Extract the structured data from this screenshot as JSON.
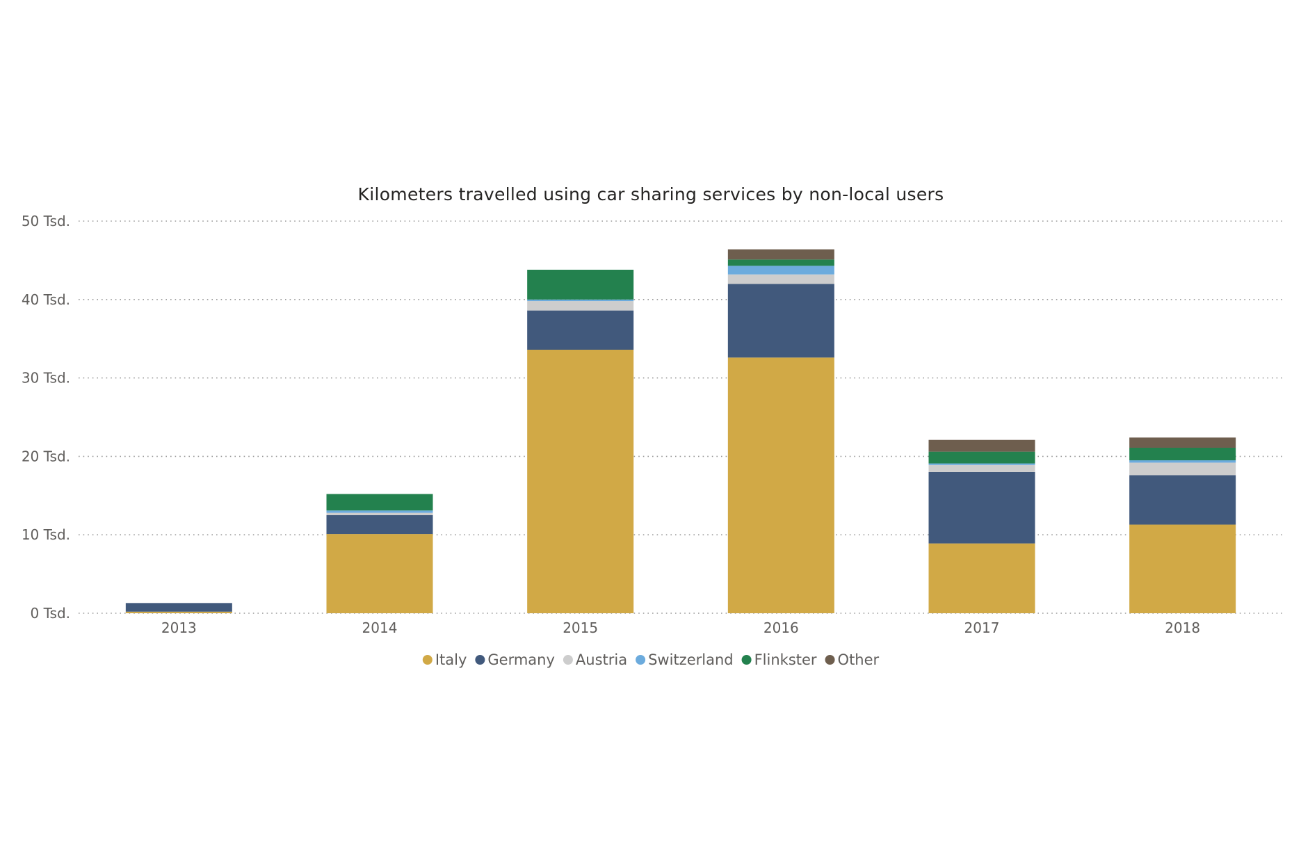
{
  "chart_data": {
    "type": "bar",
    "stacked": true,
    "title": "Kilometers travelled using car sharing services by non-local users",
    "categories": [
      "2013",
      "2014",
      "2015",
      "2016",
      "2017",
      "2018"
    ],
    "series": [
      {
        "name": "Italy",
        "color": "#D1A946",
        "values": [
          200,
          10100,
          33600,
          32600,
          8900,
          11300
        ]
      },
      {
        "name": "Germany",
        "color": "#41597C",
        "values": [
          1100,
          2400,
          5000,
          9400,
          9100,
          6300
        ]
      },
      {
        "name": "Austria",
        "color": "#CDCDCD",
        "values": [
          0,
          300,
          1200,
          1200,
          900,
          1600
        ]
      },
      {
        "name": "Switzerland",
        "color": "#6CABDD",
        "values": [
          0,
          300,
          200,
          1100,
          200,
          300
        ]
      },
      {
        "name": "Flinkster",
        "color": "#23814E",
        "values": [
          0,
          2100,
          3800,
          800,
          1500,
          1600
        ]
      },
      {
        "name": "Other",
        "color": "#6E5E4E",
        "values": [
          0,
          0,
          0,
          1300,
          1500,
          1300
        ]
      }
    ],
    "ylim": [
      0,
      50000
    ],
    "yticks": [
      0,
      10000,
      20000,
      30000,
      40000,
      50000
    ],
    "ytick_labels": [
      "0 Tsd.",
      "10 Tsd.",
      "20 Tsd.",
      "30 Tsd.",
      "40 Tsd.",
      "50 Tsd."
    ],
    "grid": true,
    "legend_position": "bottom-center",
    "xlabel": "",
    "ylabel": ""
  }
}
